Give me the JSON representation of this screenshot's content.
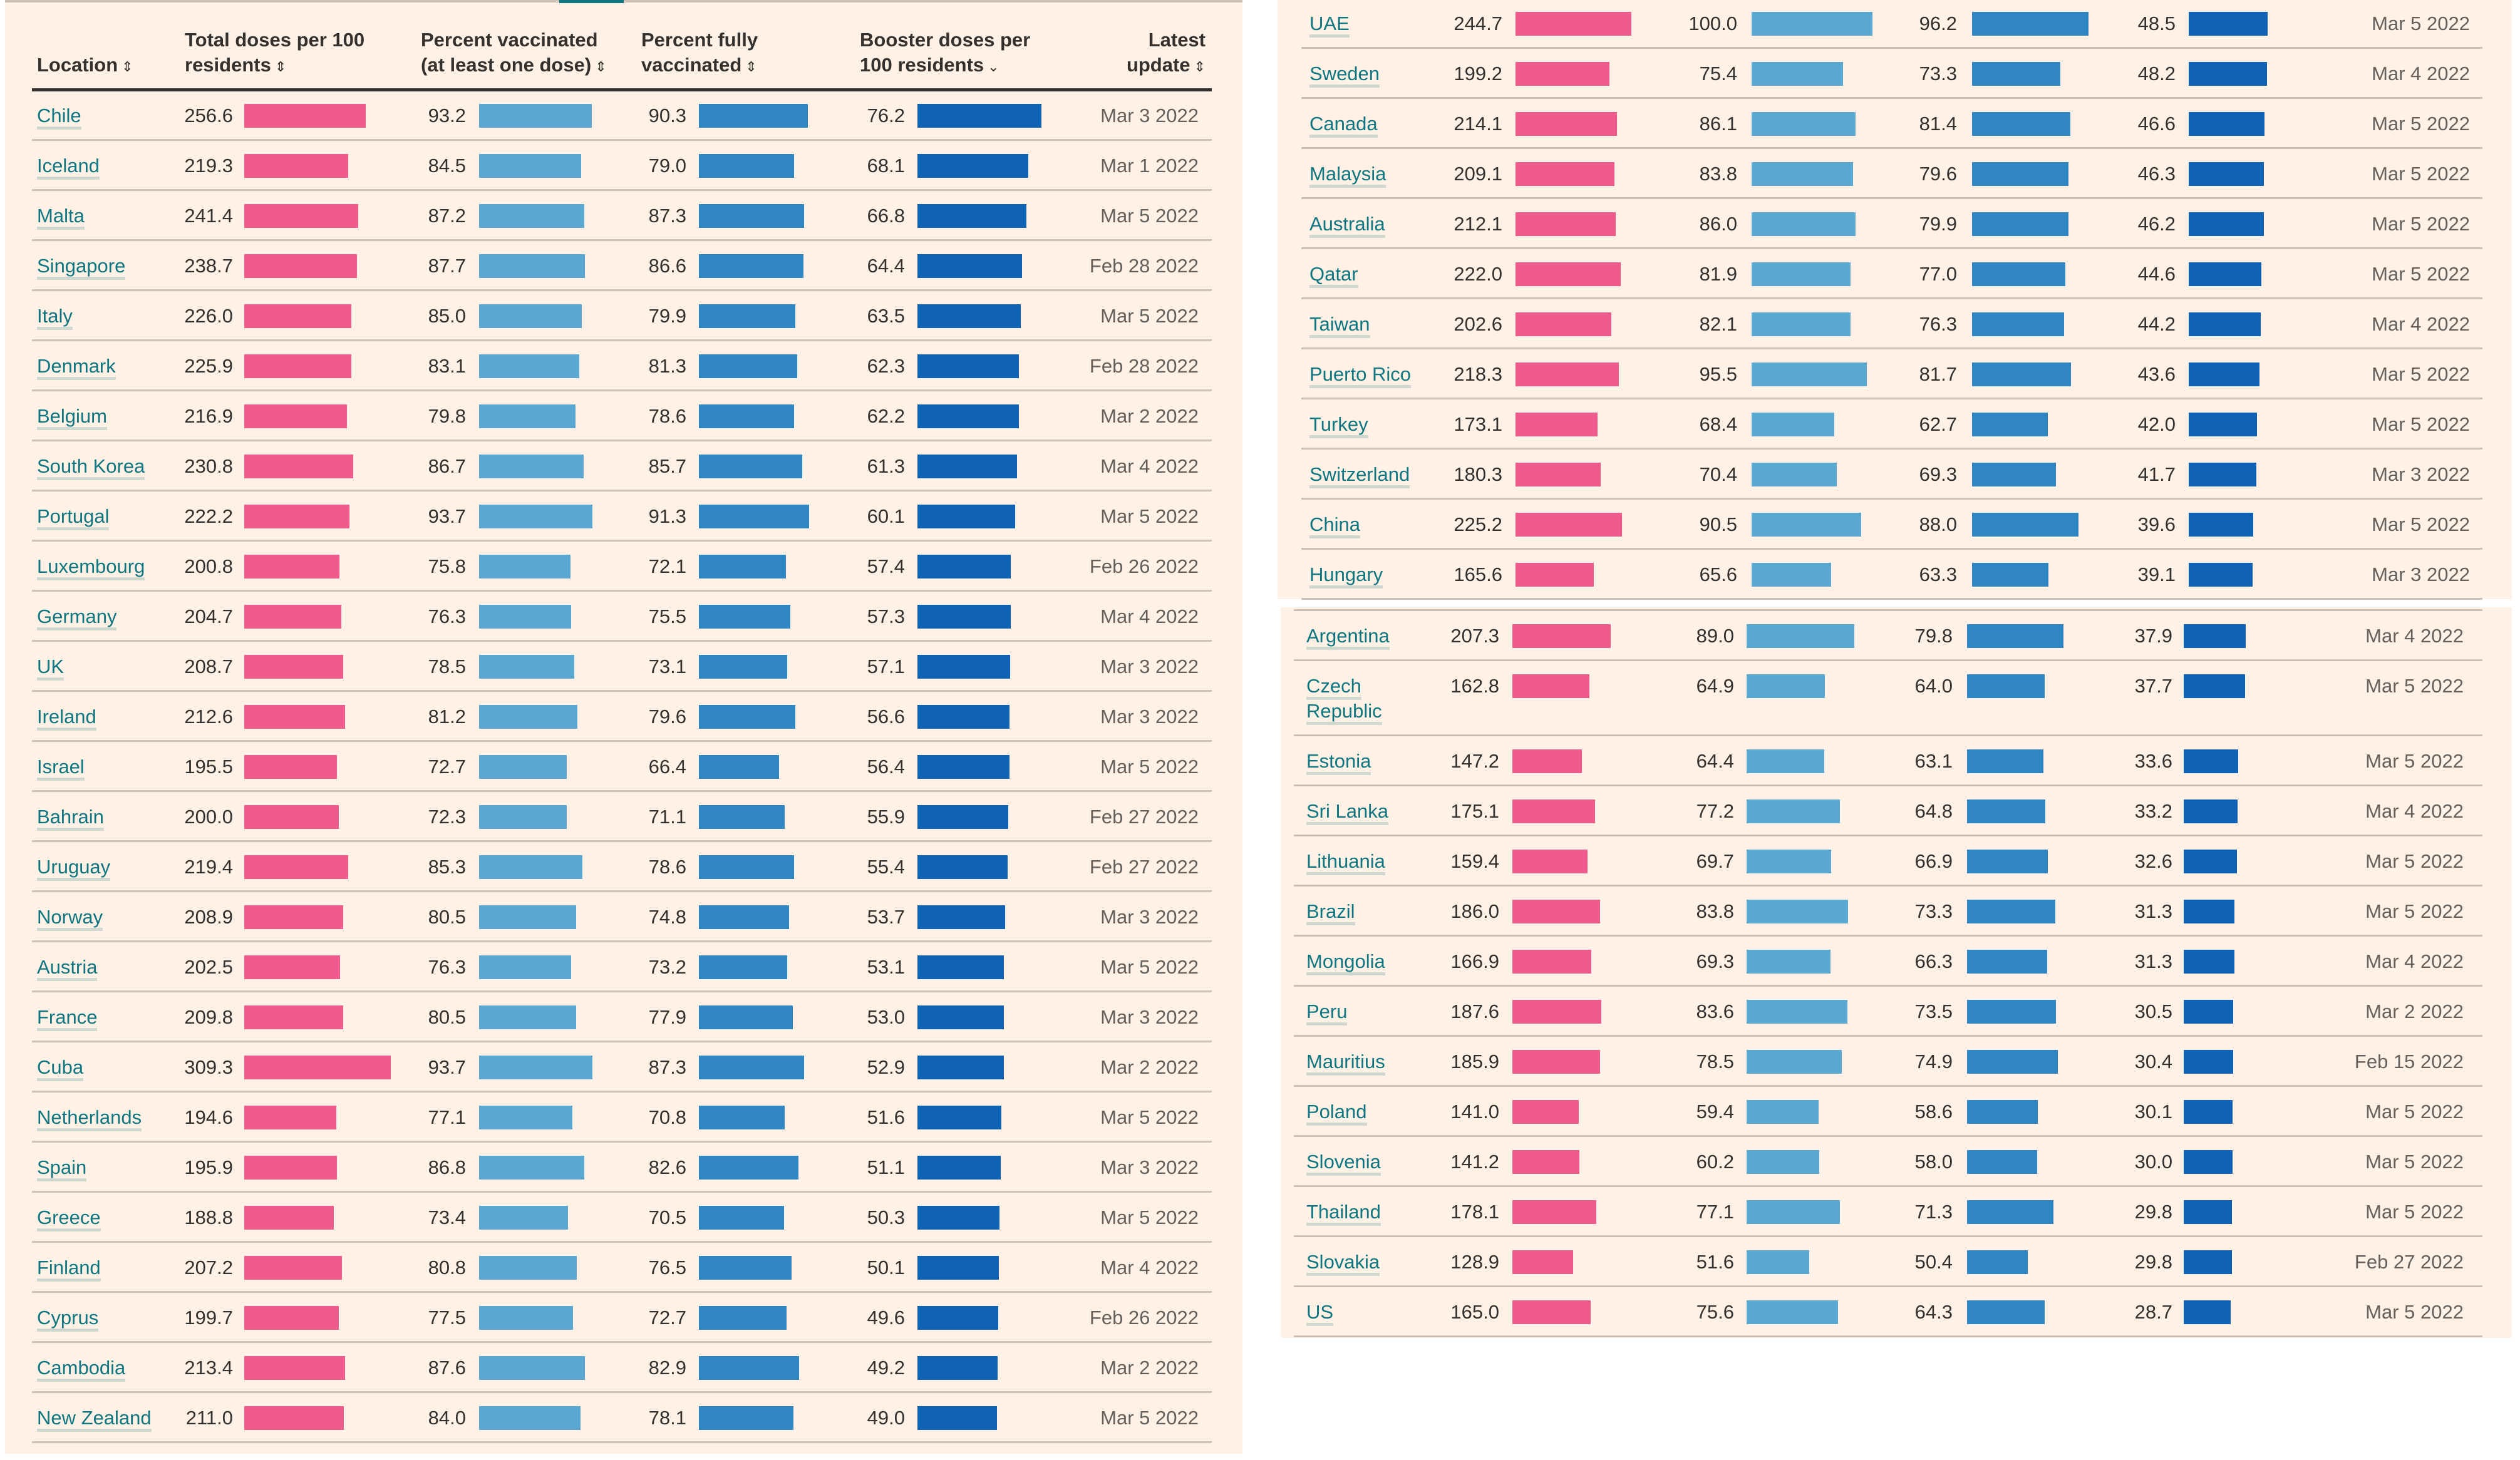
{
  "header": {
    "location": "Location",
    "total_doses": [
      "Total doses per 100",
      "residents"
    ],
    "percent_vaccinated": [
      "Percent vaccinated",
      "(at least one dose)"
    ],
    "percent_fully": [
      "Percent fully",
      "vaccinated"
    ],
    "booster": [
      "Booster doses per",
      "100 residents"
    ],
    "latest": [
      "Latest",
      "update"
    ],
    "sort_icon": "⇕",
    "sorted_desc_icon": "⌄"
  },
  "colors": {
    "total": "#ee5b8c",
    "vaccinated": "#5aa8d0",
    "fully": "#2f86c2",
    "booster": "#0f62b4",
    "background": "#fff1e5",
    "link": "#0d7680"
  },
  "chart_data": {
    "type": "table",
    "columns": [
      "Location",
      "Total doses per 100 residents",
      "Percent vaccinated (at least one dose)",
      "Percent fully vaccinated",
      "Booster doses per 100 residents",
      "Latest update"
    ],
    "sorted_by": "Booster doses per 100 residents (descending)",
    "left": [
      [
        "Chile",
        "256.6",
        "93.2",
        "90.3",
        "76.2",
        "Mar 3 2022"
      ],
      [
        "Iceland",
        "219.3",
        "84.5",
        "79.0",
        "68.1",
        "Mar 1 2022"
      ],
      [
        "Malta",
        "241.4",
        "87.2",
        "87.3",
        "66.8",
        "Mar 5 2022"
      ],
      [
        "Singapore",
        "238.7",
        "87.7",
        "86.6",
        "64.4",
        "Feb 28 2022"
      ],
      [
        "Italy",
        "226.0",
        "85.0",
        "79.9",
        "63.5",
        "Mar 5 2022"
      ],
      [
        "Denmark",
        "225.9",
        "83.1",
        "81.3",
        "62.3",
        "Feb 28 2022"
      ],
      [
        "Belgium",
        "216.9",
        "79.8",
        "78.6",
        "62.2",
        "Mar 2 2022"
      ],
      [
        "South Korea",
        "230.8",
        "86.7",
        "85.7",
        "61.3",
        "Mar 4 2022"
      ],
      [
        "Portugal",
        "222.2",
        "93.7",
        "91.3",
        "60.1",
        "Mar 5 2022"
      ],
      [
        "Luxembourg",
        "200.8",
        "75.8",
        "72.1",
        "57.4",
        "Feb 26 2022"
      ],
      [
        "Germany",
        "204.7",
        "76.3",
        "75.5",
        "57.3",
        "Mar 4 2022"
      ],
      [
        "UK",
        "208.7",
        "78.5",
        "73.1",
        "57.1",
        "Mar 3 2022"
      ],
      [
        "Ireland",
        "212.6",
        "81.2",
        "79.6",
        "56.6",
        "Mar 3 2022"
      ],
      [
        "Israel",
        "195.5",
        "72.7",
        "66.4",
        "56.4",
        "Mar 5 2022"
      ],
      [
        "Bahrain",
        "200.0",
        "72.3",
        "71.1",
        "55.9",
        "Feb 27 2022"
      ],
      [
        "Uruguay",
        "219.4",
        "85.3",
        "78.6",
        "55.4",
        "Feb 27 2022"
      ],
      [
        "Norway",
        "208.9",
        "80.5",
        "74.8",
        "53.7",
        "Mar 3 2022"
      ],
      [
        "Austria",
        "202.5",
        "76.3",
        "73.2",
        "53.1",
        "Mar 5 2022"
      ],
      [
        "France",
        "209.8",
        "80.5",
        "77.9",
        "53.0",
        "Mar 3 2022"
      ],
      [
        "Cuba",
        "309.3",
        "93.7",
        "87.3",
        "52.9",
        "Mar 2 2022"
      ],
      [
        "Netherlands",
        "194.6",
        "77.1",
        "70.8",
        "51.6",
        "Mar 5 2022"
      ],
      [
        "Spain",
        "195.9",
        "86.8",
        "82.6",
        "51.1",
        "Mar 3 2022"
      ],
      [
        "Greece",
        "188.8",
        "73.4",
        "70.5",
        "50.3",
        "Mar 5 2022"
      ],
      [
        "Finland",
        "207.2",
        "80.8",
        "76.5",
        "50.1",
        "Mar 4 2022"
      ],
      [
        "Cyprus",
        "199.7",
        "77.5",
        "72.7",
        "49.6",
        "Feb 26 2022"
      ],
      [
        "Cambodia",
        "213.4",
        "87.6",
        "82.9",
        "49.2",
        "Mar 2 2022"
      ],
      [
        "New Zealand",
        "211.0",
        "84.0",
        "78.1",
        "49.0",
        "Mar 5 2022"
      ]
    ],
    "right_top": [
      [
        "UAE",
        "244.7",
        "100.0",
        "96.2",
        "48.5",
        "Mar 5 2022"
      ],
      [
        "Sweden",
        "199.2",
        "75.4",
        "73.3",
        "48.2",
        "Mar 4 2022"
      ],
      [
        "Canada",
        "214.1",
        "86.1",
        "81.4",
        "46.6",
        "Mar 5 2022"
      ],
      [
        "Malaysia",
        "209.1",
        "83.8",
        "79.6",
        "46.3",
        "Mar 5 2022"
      ],
      [
        "Australia",
        "212.1",
        "86.0",
        "79.9",
        "46.2",
        "Mar 5 2022"
      ],
      [
        "Qatar",
        "222.0",
        "81.9",
        "77.0",
        "44.6",
        "Mar 5 2022"
      ],
      [
        "Taiwan",
        "202.6",
        "82.1",
        "76.3",
        "44.2",
        "Mar 4 2022"
      ],
      [
        "Puerto Rico",
        "218.3",
        "95.5",
        "81.7",
        "43.6",
        "Mar 5 2022"
      ],
      [
        "Turkey",
        "173.1",
        "68.4",
        "62.7",
        "42.0",
        "Mar 5 2022"
      ],
      [
        "Switzerland",
        "180.3",
        "70.4",
        "69.3",
        "41.7",
        "Mar 3 2022"
      ],
      [
        "China",
        "225.2",
        "90.5",
        "88.0",
        "39.6",
        "Mar 5 2022"
      ],
      [
        "Hungary",
        "165.6",
        "65.6",
        "63.3",
        "39.1",
        "Mar 3 2022"
      ]
    ],
    "right_bottom": [
      [
        "Argentina",
        "207.3",
        "89.0",
        "79.8",
        "37.9",
        "Mar 4 2022"
      ],
      [
        "Czech Republic",
        "162.8",
        "64.9",
        "64.0",
        "37.7",
        "Mar 5 2022"
      ],
      [
        "Estonia",
        "147.2",
        "64.4",
        "63.1",
        "33.6",
        "Mar 5 2022"
      ],
      [
        "Sri Lanka",
        "175.1",
        "77.2",
        "64.8",
        "33.2",
        "Mar 4 2022"
      ],
      [
        "Lithuania",
        "159.4",
        "69.7",
        "66.9",
        "32.6",
        "Mar 5 2022"
      ],
      [
        "Brazil",
        "186.0",
        "83.8",
        "73.3",
        "31.3",
        "Mar 5 2022"
      ],
      [
        "Mongolia",
        "166.9",
        "69.3",
        "66.3",
        "31.3",
        "Mar 4 2022"
      ],
      [
        "Peru",
        "187.6",
        "83.6",
        "73.5",
        "30.5",
        "Mar 2 2022"
      ],
      [
        "Mauritius",
        "185.9",
        "78.5",
        "74.9",
        "30.4",
        "Feb 15 2022"
      ],
      [
        "Poland",
        "141.0",
        "59.4",
        "58.6",
        "30.1",
        "Mar 5 2022"
      ],
      [
        "Slovenia",
        "141.2",
        "60.2",
        "58.0",
        "30.0",
        "Mar 5 2022"
      ],
      [
        "Thailand",
        "178.1",
        "77.1",
        "71.3",
        "29.8",
        "Mar 5 2022"
      ],
      [
        "Slovakia",
        "128.9",
        "51.6",
        "50.4",
        "29.8",
        "Feb 27 2022"
      ],
      [
        "US",
        "165.0",
        "75.6",
        "64.3",
        "28.7",
        "Mar 5 2022"
      ]
    ]
  }
}
